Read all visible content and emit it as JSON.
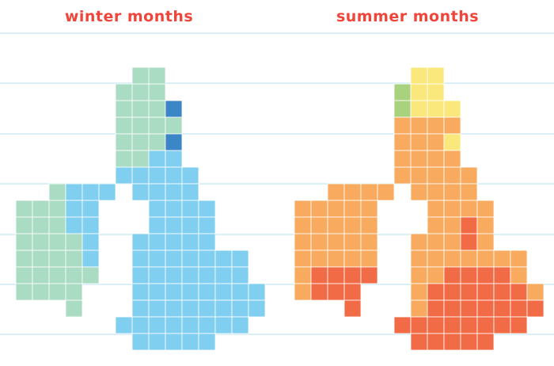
{
  "panels": [
    {
      "title": "winter months"
    },
    {
      "title": "summer months"
    }
  ]
}
